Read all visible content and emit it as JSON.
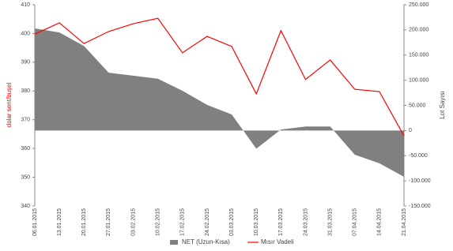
{
  "chart_data": {
    "type": "combo",
    "categories": [
      "06.01.2015",
      "13.01.2015",
      "20.01.2015",
      "27.01.2015",
      "03.02.2015",
      "10.02.2015",
      "17.02.2015",
      "24.02.2015",
      "03.03.2015",
      "10.03.2015",
      "17.03.2015",
      "24.03.2015",
      "31.03.2015",
      "07.04.2015",
      "14.04.2015",
      "21.04.2015"
    ],
    "series": [
      {
        "name": "NET (Uzun-Kısa)",
        "type": "area",
        "axis": "y2",
        "color": "#808080",
        "values": [
          203000,
          195000,
          168000,
          115000,
          109000,
          103000,
          79000,
          51000,
          32000,
          -36000,
          2000,
          8000,
          8000,
          -48000,
          -65000,
          -92000
        ]
      },
      {
        "name": "Mısır Vadeli",
        "type": "line",
        "color": "#ff0000",
        "values": [
          399.8,
          403.7,
          396.5,
          400.7,
          403.4,
          405.3,
          393.3,
          399,
          395.5,
          379,
          401,
          384,
          390.8,
          380.6,
          379.8,
          364.4
        ]
      }
    ],
    "ylabel": "dolar sent/buşel",
    "y2label": "Lot Sayısı",
    "ylim": [
      340,
      410
    ],
    "yticks": [
      340,
      350,
      360,
      370,
      380,
      390,
      400,
      410
    ],
    "y2lim": [
      -150000,
      250000
    ],
    "y2ticks": [
      {
        "value": -150000,
        "label": "-150.000"
      },
      {
        "value": -100000,
        "label": "-100.000"
      },
      {
        "value": -50000,
        "label": "-50.000"
      },
      0,
      {
        "value": 50000,
        "label": "50.000"
      },
      {
        "value": 100000,
        "label": "100.000"
      },
      {
        "value": 150000,
        "label": "150.000"
      },
      {
        "value": 200000,
        "label": "200.000"
      },
      {
        "value": 250000,
        "label": "250.000"
      }
    ],
    "legend": "bottom"
  }
}
